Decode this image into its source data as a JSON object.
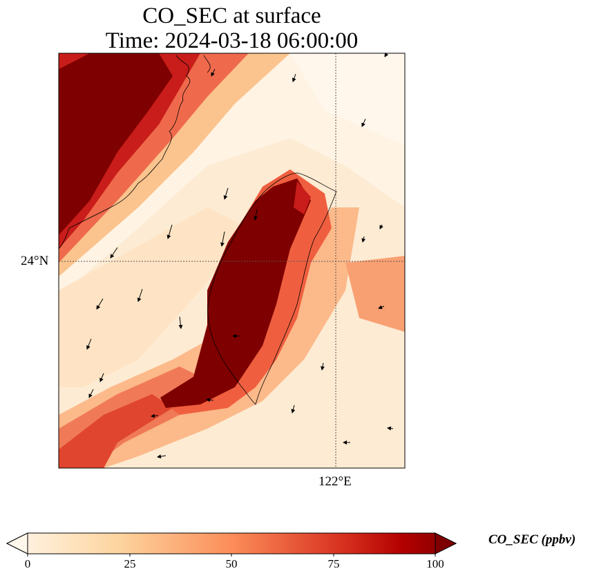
{
  "title": {
    "line1": "CO_SEC at surface",
    "line2": "Time: 2024-03-18 06:00:00"
  },
  "axes": {
    "lat_label": "24°N",
    "lon_label": "122°E"
  },
  "colorbar": {
    "label": "CO_SEC (ppbv)",
    "ticks": [
      "0",
      "25",
      "50",
      "75",
      "100"
    ],
    "range": [
      0,
      100
    ],
    "colormap": "OrRd",
    "colors": [
      "#fff7ec",
      "#fdd49e",
      "#fc8d59",
      "#d7301f",
      "#7f0000"
    ]
  }
}
